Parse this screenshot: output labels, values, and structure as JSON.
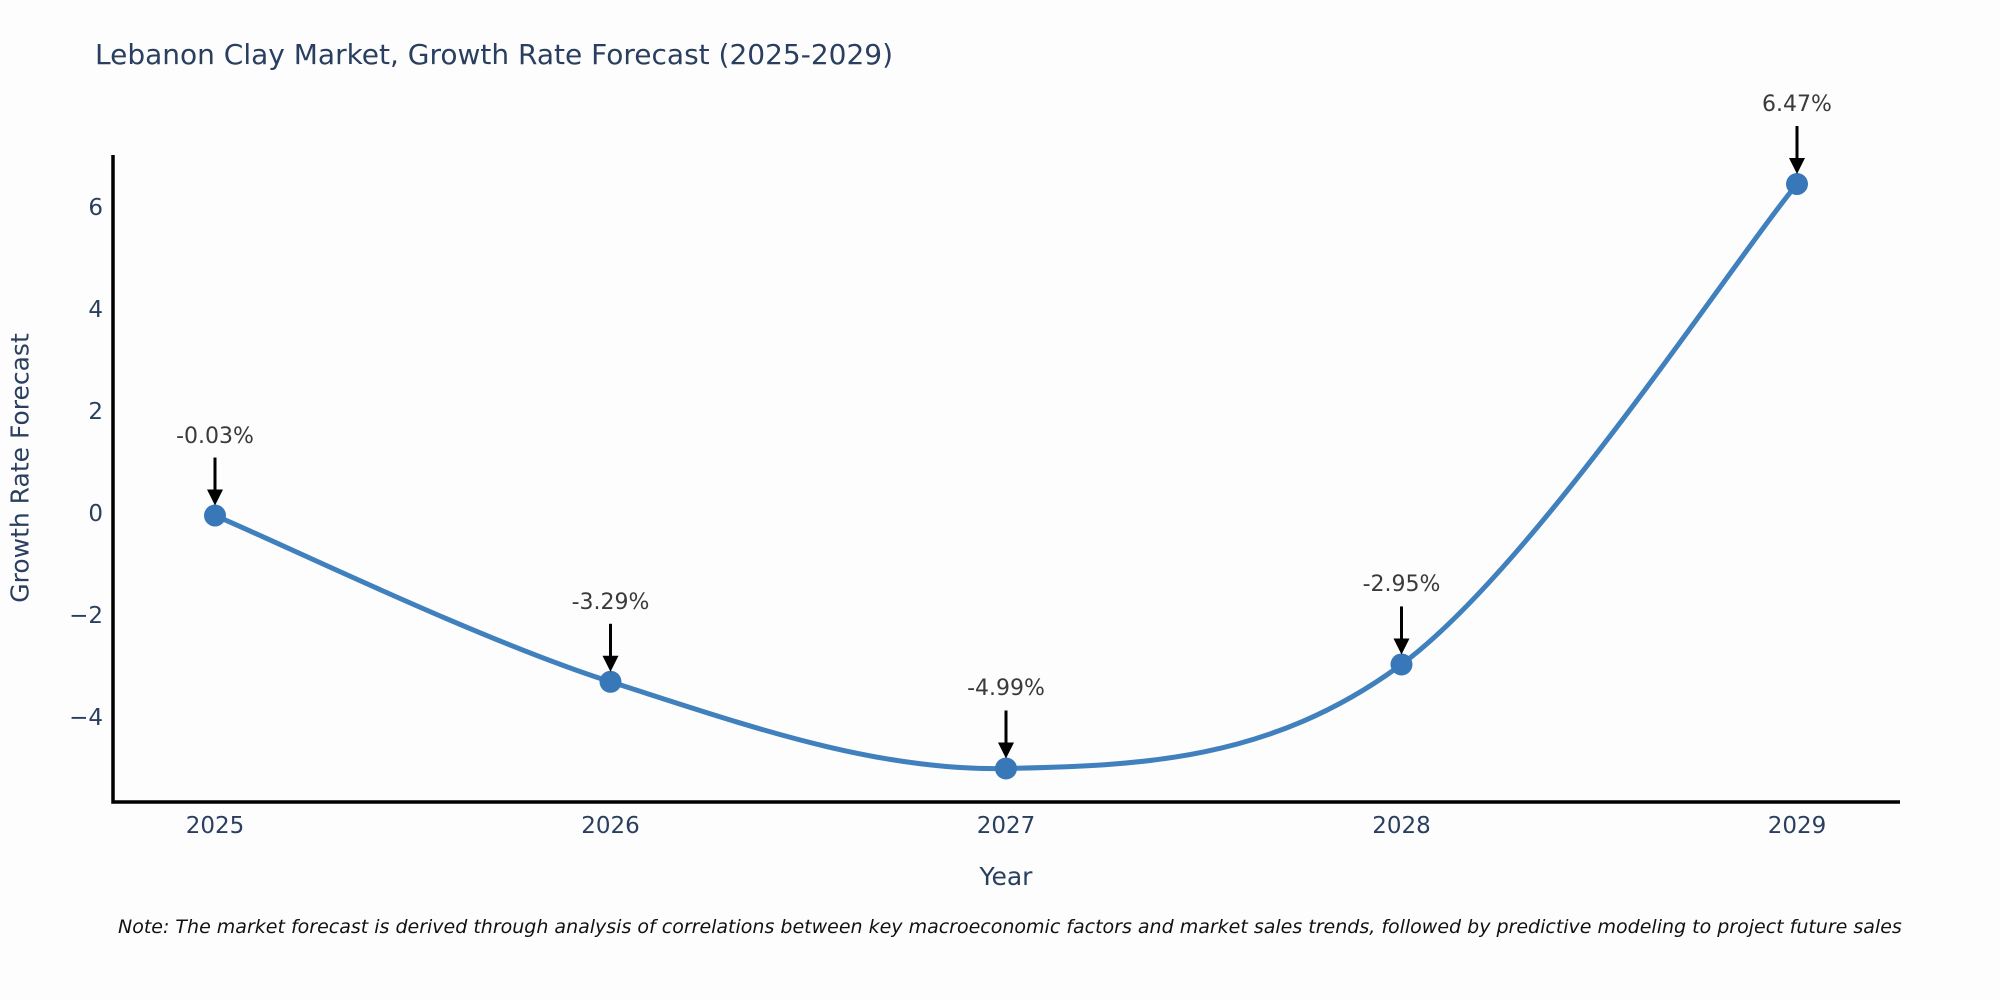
{
  "title": "Lebanon Clay Market, Growth Rate Forecast (2025-2029)",
  "note": "Note: The market forecast is derived through analysis of correlations between key macroeconomic factors and market sales trends, followed by predictive modeling to project future sales",
  "colors": {
    "line": "#4080bd",
    "marker": "#3878b8",
    "axis": "#000000",
    "label_text": "#2a3f5f",
    "annotation_text": "#3a3a3a",
    "arrow": "#000000",
    "background": "#fdfdfd"
  },
  "chart_data": {
    "type": "line",
    "title": "Lebanon Clay Market, Growth Rate Forecast (2025-2029)",
    "xlabel": "Year",
    "ylabel": "Growth Rate Forecast",
    "categories": [
      "2025",
      "2026",
      "2027",
      "2028",
      "2029"
    ],
    "values": [
      -0.03,
      -3.29,
      -4.99,
      -2.95,
      6.47
    ],
    "point_labels": [
      "-0.03%",
      "-3.29%",
      "-4.99%",
      "-2.95%",
      "6.47%"
    ],
    "yticks": [
      6,
      4,
      2,
      0,
      -2,
      -4
    ],
    "ylim": [
      -5.65,
      7.04
    ],
    "xlim": [
      2024.74,
      2029.26
    ],
    "grid": false,
    "legend": "none",
    "line_shape": "spline",
    "markers": true,
    "annotations": "value labels with downward arrows above each point"
  }
}
